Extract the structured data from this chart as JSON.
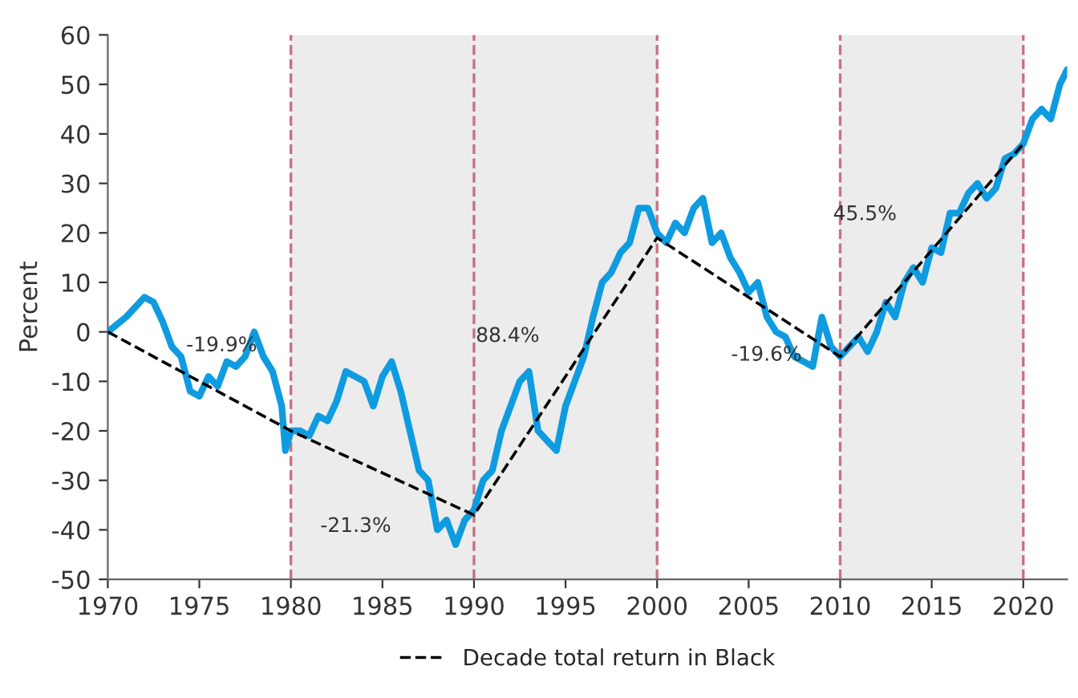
{
  "chart_data": {
    "type": "line",
    "ylabel": "Percent",
    "x": [
      1970,
      1971,
      1972,
      1972.5,
      1973,
      1973.5,
      1974,
      1974.5,
      1975,
      1975.5,
      1976,
      1976.5,
      1977,
      1977.5,
      1978,
      1978.5,
      1979,
      1979.5,
      1979.7,
      1980,
      1980.5,
      1981,
      1981.5,
      1982,
      1982.5,
      1983,
      1983.5,
      1984,
      1984.5,
      1985,
      1985.5,
      1986,
      1986.5,
      1987,
      1987.5,
      1988,
      1988.5,
      1989,
      1989.5,
      1990,
      1990.5,
      1991,
      1991.5,
      1992,
      1992.5,
      1993,
      1993.5,
      1994,
      1994.5,
      1995,
      1995.5,
      1996,
      1996.5,
      1997,
      1997.5,
      1998,
      1998.5,
      1999,
      1999.5,
      2000,
      2000.5,
      2001,
      2001.5,
      2002,
      2002.5,
      2003,
      2003.5,
      2004,
      2004.5,
      2005,
      2005.5,
      2006,
      2006.5,
      2007,
      2007.5,
      2008,
      2008.5,
      2009,
      2009.5,
      2010,
      2010.5,
      2011,
      2011.5,
      2012,
      2012.5,
      2013,
      2013.5,
      2014,
      2014.5,
      2015,
      2015.5,
      2016,
      2016.5,
      2017,
      2017.5,
      2018,
      2018.5,
      2019,
      2019.5,
      2020,
      2020.5,
      2021,
      2021.5,
      2022,
      2022.4
    ],
    "series": [
      {
        "color": "#0f9be0",
        "values": [
          0,
          3,
          7,
          6,
          2,
          -3,
          -5,
          -12,
          -13,
          -9,
          -11,
          -6,
          -7,
          -5,
          0,
          -5,
          -8,
          -15,
          -24,
          -20,
          -20,
          -21,
          -17,
          -18,
          -14,
          -8,
          -9,
          -10,
          -15,
          -9,
          -6,
          -12,
          -20,
          -28,
          -30,
          -40,
          -38,
          -43,
          -38,
          -36,
          -30,
          -28,
          -20,
          -15,
          -10,
          -8,
          -20,
          -22,
          -24,
          -15,
          -10,
          -5,
          3,
          10,
          12,
          16,
          18,
          25,
          25,
          20,
          18,
          22,
          20,
          25,
          27,
          18,
          20,
          15,
          12,
          8,
          10,
          3,
          0,
          -1,
          -5,
          -6,
          -7,
          3,
          -3,
          -5,
          -3,
          -1,
          -4,
          0,
          6,
          3,
          10,
          13,
          10,
          17,
          16,
          24,
          24,
          28,
          30,
          27,
          29,
          35,
          36,
          38,
          43,
          45,
          43,
          50,
          53
        ]
      },
      {
        "type": "line",
        "name": "Decade total return in Black",
        "color": "#000000",
        "line_style": "dashed",
        "x": [
          1970,
          1980,
          1990,
          2000,
          2010,
          2020
        ],
        "values": [
          0,
          -20,
          -37,
          19,
          -5,
          38
        ]
      }
    ],
    "xlim": [
      1970,
      2022.4
    ],
    "xticks": [
      1970,
      1975,
      1980,
      1985,
      1990,
      1995,
      2000,
      2005,
      2010,
      2015,
      2020
    ],
    "ylim": [
      -50,
      60
    ],
    "yticks": [
      -50,
      -40,
      -30,
      -20,
      -10,
      0,
      10,
      20,
      30,
      40,
      50,
      60
    ],
    "bands": [
      {
        "axis": "x",
        "from": 1980,
        "to": 2000,
        "color": "#ececec"
      },
      {
        "axis": "x",
        "from": 2010,
        "to": 2020,
        "color": "#ececec"
      }
    ],
    "ref_lines": [
      {
        "axis": "x",
        "value": 1980,
        "color": "#c9707f",
        "line_style": "dashed"
      },
      {
        "axis": "x",
        "value": 1990,
        "color": "#c9707f",
        "line_style": "dashed"
      },
      {
        "axis": "x",
        "value": 2000,
        "color": "#c9707f",
        "line_style": "dashed"
      },
      {
        "axis": "x",
        "value": 2010,
        "color": "#c9707f",
        "line_style": "dashed"
      },
      {
        "axis": "x",
        "value": 2020,
        "color": "#c9707f",
        "line_style": "dashed"
      }
    ],
    "annotations": [
      "-19.9%",
      "-21.3%",
      "88.4%",
      "-19.6%",
      "45.5%"
    ],
    "legend": "bottom",
    "grid": false
  }
}
